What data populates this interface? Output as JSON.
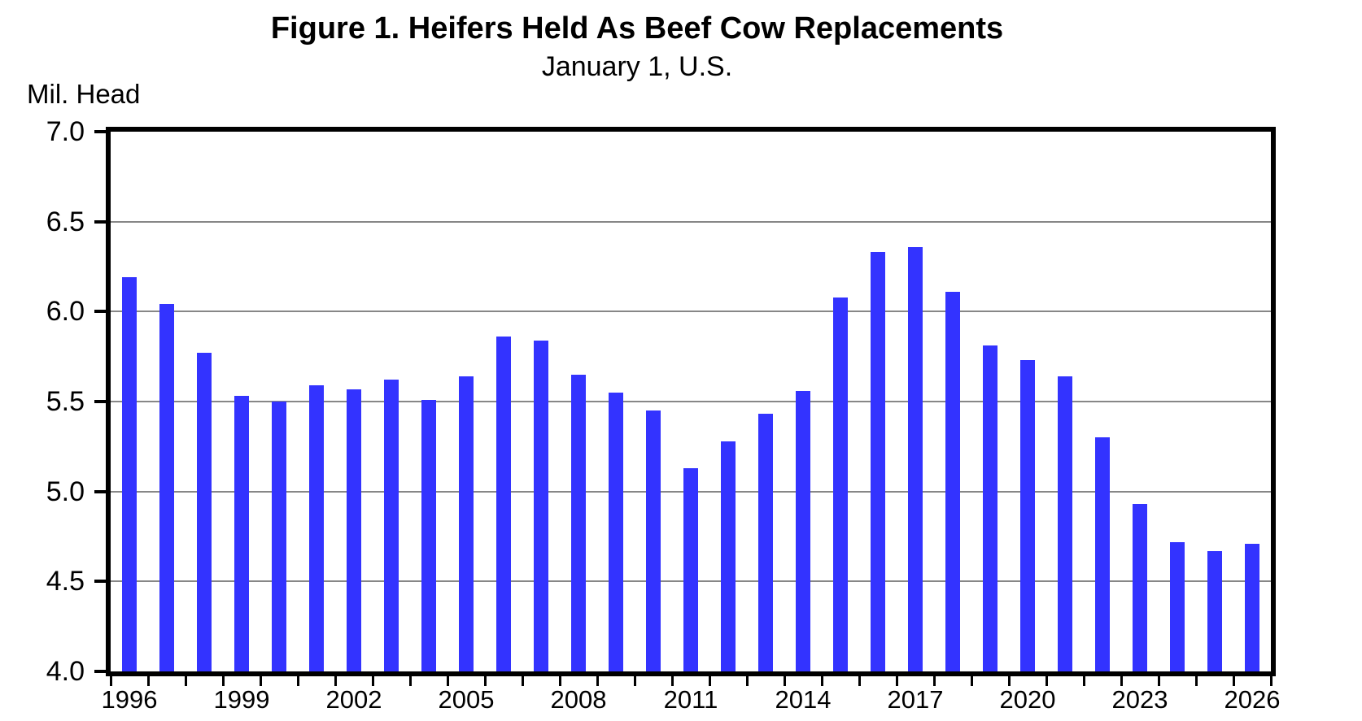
{
  "chart_data": {
    "type": "bar",
    "title": "Figure 1. Heifers Held As Beef Cow Replacements",
    "subtitle": "January 1, U.S.",
    "ylabel": "Mil. Head",
    "xlabel": "",
    "categories": [
      1996,
      1997,
      1998,
      1999,
      2000,
      2001,
      2002,
      2003,
      2004,
      2005,
      2006,
      2007,
      2008,
      2009,
      2010,
      2011,
      2012,
      2013,
      2014,
      2015,
      2016,
      2017,
      2018,
      2019,
      2020,
      2021,
      2022,
      2023,
      2024,
      2025,
      2026
    ],
    "values": [
      6.19,
      6.04,
      5.77,
      5.53,
      5.5,
      5.59,
      5.57,
      5.62,
      5.51,
      5.64,
      5.86,
      5.84,
      5.65,
      5.55,
      5.45,
      5.13,
      5.28,
      5.43,
      5.56,
      6.08,
      6.33,
      6.36,
      6.11,
      5.81,
      5.73,
      5.64,
      5.3,
      4.93,
      4.72,
      4.67,
      4.71
    ],
    "ylim": [
      4.0,
      7.0
    ],
    "ytick_labels": [
      "7.0",
      "6.5",
      "6.0",
      "5.5",
      "5.0",
      "4.5",
      "4.0"
    ],
    "ytick_values": [
      7.0,
      6.5,
      6.0,
      5.5,
      5.0,
      4.5,
      4.0
    ],
    "xtick_labels": [
      "1996",
      "1999",
      "2002",
      "2005",
      "2008",
      "2011",
      "2014",
      "2017",
      "2020",
      "2023",
      "2026"
    ],
    "xtick_years": [
      1996,
      1999,
      2002,
      2005,
      2008,
      2011,
      2014,
      2017,
      2020,
      2023,
      2026
    ],
    "grid": "horizontal-gridlines-on",
    "legend": "none",
    "bar_color": "#3333FF",
    "gridline_color": "#878787",
    "axis_color": "#000000",
    "background_color": "#FFFFFF",
    "text_color": "#000000"
  }
}
